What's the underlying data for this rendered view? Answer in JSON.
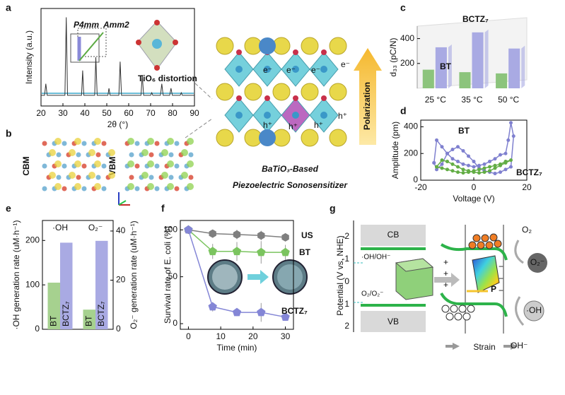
{
  "panel_labels": [
    "a",
    "b",
    "c",
    "d",
    "e",
    "f",
    "g"
  ],
  "chart_data": [
    {
      "type": "line",
      "xlabel": "2θ (°)",
      "ylabel": "Intensity (a.u.)",
      "x": [
        20,
        21.6,
        22.2,
        22.8,
        30.9,
        31.5,
        32.1,
        38.5,
        39,
        39.5,
        44.5,
        45,
        45.6,
        50.5,
        51,
        51.5,
        55.5,
        56.1,
        56.7,
        65.6,
        66.2,
        66.8,
        70,
        70.5,
        71,
        74.5,
        75.1,
        75.7,
        78.7,
        79.3,
        79.9,
        83.5,
        84,
        84.5,
        90
      ],
      "series": [
        {
          "color": "#333333",
          "values": [
            0.12,
            0.12,
            0.25,
            0.12,
            0.12,
            1.0,
            0.12,
            0.12,
            0.4,
            0.12,
            0.12,
            0.55,
            0.12,
            0.12,
            0.2,
            0.12,
            0.12,
            0.5,
            0.12,
            0.12,
            0.35,
            0.12,
            0.12,
            0.15,
            0.12,
            0.12,
            0.25,
            0.12,
            0.12,
            0.2,
            0.12,
            0.12,
            0.15,
            0.12,
            0.12
          ]
        }
      ],
      "xlim": [
        20,
        90
      ],
      "xticks": [
        20,
        30,
        40,
        50,
        60,
        70,
        80,
        90
      ],
      "ylim": [
        0,
        1.1
      ],
      "annotations": [
        "P4mm",
        "Amm2",
        "TiO₆ distortion"
      ]
    },
    {
      "type": "bar",
      "ylabel": "d₃₃ (pC/N)",
      "categories": [
        "25 °C",
        "35 °C",
        "50 °C"
      ],
      "series": [
        {
          "name": "BT",
          "color": "#8cc47c",
          "values": [
            150,
            130,
            120
          ]
        },
        {
          "name": "BCTZ₇",
          "color": "#a9aae3",
          "values": [
            330,
            450,
            320
          ]
        }
      ],
      "ylim": [
        0,
        500
      ],
      "yticks": [
        200,
        400
      ]
    },
    {
      "type": "line",
      "xlabel": "Voltage (V)",
      "ylabel": "Amplitude (pm)",
      "series": [
        {
          "name": "BCTZ₇",
          "color": "#7f80cf",
          "marker": "circle",
          "x": [
            -15,
            -14,
            -12,
            -10,
            -8,
            -6,
            -4,
            -2,
            0,
            2,
            4,
            6,
            8,
            10,
            12,
            13,
            14,
            15,
            14,
            12,
            10,
            8,
            6,
            4,
            2,
            0,
            -2,
            -4,
            -6,
            -8,
            -10,
            -12,
            -14,
            -15
          ],
          "values": [
            130,
            300,
            250,
            200,
            160,
            140,
            120,
            110,
            100,
            110,
            120,
            140,
            160,
            190,
            200,
            300,
            430,
            330,
            100,
            80,
            60,
            50,
            60,
            70,
            90,
            140,
            180,
            220,
            250,
            230,
            200,
            120,
            80,
            130
          ]
        },
        {
          "name": "BT",
          "color": "#63ad45",
          "marker": "circle",
          "x": [
            -14,
            -12,
            -10,
            -8,
            -6,
            -4,
            -2,
            0,
            2,
            4,
            6,
            8,
            10,
            12,
            14,
            12,
            10,
            8,
            6,
            4,
            2,
            0,
            -2,
            -4,
            -6,
            -8,
            -10,
            -12,
            -14
          ],
          "values": [
            100,
            90,
            80,
            70,
            60,
            55,
            60,
            70,
            80,
            90,
            100,
            110,
            120,
            140,
            150,
            130,
            110,
            90,
            70,
            60,
            55,
            60,
            70,
            80,
            100,
            120,
            140,
            150,
            100
          ]
        }
      ],
      "xlim": [
        -20,
        20
      ],
      "xticks": [
        -20,
        0,
        20
      ],
      "ylim": [
        0,
        450
      ],
      "yticks": [
        0,
        200,
        400
      ]
    },
    {
      "type": "bar",
      "ylabel": "·OH generation rate (uM·h⁻¹)",
      "y2label": "O₂⁻ generation rate (uM·h⁻¹)",
      "categories": [
        "·OH",
        "O₂⁻"
      ],
      "category_axis": [
        "y",
        "y2"
      ],
      "names_in_bars": true,
      "series": [
        {
          "name": "BT",
          "color": "#a6d18f",
          "values": [
            105,
            8
          ]
        },
        {
          "name": "BCTZ₇",
          "color": "#a9aae3",
          "values": [
            195,
            36
          ]
        }
      ],
      "ylim": [
        0,
        245
      ],
      "yticks": [
        0,
        100,
        200
      ],
      "y2lim": [
        0,
        44.3
      ],
      "y2ticks": [
        0,
        20,
        40
      ]
    },
    {
      "type": "line",
      "xlabel": "Time (min)",
      "ylabel": "Survival rate of E. coli (%)",
      "x": [
        0,
        7.5,
        15,
        22.5,
        30
      ],
      "series": [
        {
          "name": "US",
          "color": "#7f7f7f",
          "marker": "hexagon",
          "values": [
            100,
            96,
            95,
            94,
            92
          ],
          "errors": [
            0,
            4,
            5,
            5,
            4
          ]
        },
        {
          "name": "BT",
          "color": "#7bc45f",
          "marker": "pentagon",
          "values": [
            100,
            77,
            77,
            76,
            76
          ],
          "errors": [
            0,
            8,
            10,
            12,
            8
          ]
        },
        {
          "name": "BCTZ₇",
          "color": "#8486d6",
          "marker": "pentagon",
          "values": [
            100,
            18,
            12,
            12,
            7
          ],
          "errors": [
            0,
            5,
            4,
            10,
            4
          ]
        }
      ],
      "xlim": [
        -2.5,
        32.5
      ],
      "xticks": [
        0,
        10,
        20,
        30
      ],
      "ylim": [
        -6,
        110
      ],
      "yticks": [
        0,
        50,
        100
      ]
    }
  ],
  "band_images": {
    "labels": [
      "CBM",
      "VBM"
    ]
  },
  "crystal": {
    "electrons": [
      "e⁻",
      "e⁻",
      "e⁻",
      "e⁻"
    ],
    "holes": [
      "h⁺",
      "h⁺",
      "h⁺",
      "h⁺"
    ],
    "arrow": "Polarization",
    "caption": [
      "BaTiO₃-Based",
      "Piezoelectric Sonosensitizer"
    ]
  },
  "diagram_g": {
    "axis_label": "Potential (V vs. NHE)",
    "ticks": [
      "-2",
      "-1",
      "0",
      "1",
      "2"
    ],
    "bands": [
      "CB",
      "VB"
    ],
    "redox": [
      "·OH/OH⁻",
      "O₂/O₂⁻"
    ],
    "polarization": "P",
    "strain": "Strain",
    "species": [
      "O₂",
      "O₂⁻",
      "·OH",
      "OH⁻"
    ]
  }
}
